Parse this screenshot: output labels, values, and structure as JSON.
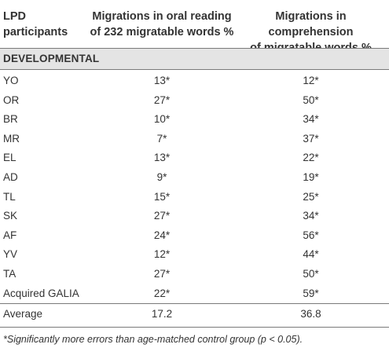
{
  "table": {
    "headers": [
      {
        "line1": "LPD",
        "line2": "participants"
      },
      {
        "line1": "Migrations in oral reading",
        "line2": "of 232 migratable words %"
      },
      {
        "line1": "Migrations in comprehension",
        "line2": "of migratable words %"
      }
    ],
    "section_label": "DEVELOPMENTAL",
    "rows": [
      {
        "participant": "YO",
        "oral": "13*",
        "comprehension": "12*"
      },
      {
        "participant": "OR",
        "oral": "27*",
        "comprehension": "50*"
      },
      {
        "participant": "BR",
        "oral": "10*",
        "comprehension": "34*"
      },
      {
        "participant": "MR",
        "oral": "7*",
        "comprehension": "37*"
      },
      {
        "participant": "EL",
        "oral": "13*",
        "comprehension": "22*"
      },
      {
        "participant": "AD",
        "oral": "9*",
        "comprehension": "19*"
      },
      {
        "participant": "TL",
        "oral": "15*",
        "comprehension": "25*"
      },
      {
        "participant": "SK",
        "oral": "27*",
        "comprehension": "34*"
      },
      {
        "participant": "AF",
        "oral": "24*",
        "comprehension": "56*"
      },
      {
        "participant": "YV",
        "oral": "12*",
        "comprehension": "44*"
      },
      {
        "participant": "TA",
        "oral": "27*",
        "comprehension": "50*"
      },
      {
        "participant": "Acquired GALIA",
        "oral": "22*",
        "comprehension": "59*"
      }
    ],
    "average": {
      "label": "Average",
      "oral": "17.2",
      "comprehension": "36.8"
    },
    "footnote": "*Significantly more errors than age-matched control group (p < 0.05)."
  }
}
